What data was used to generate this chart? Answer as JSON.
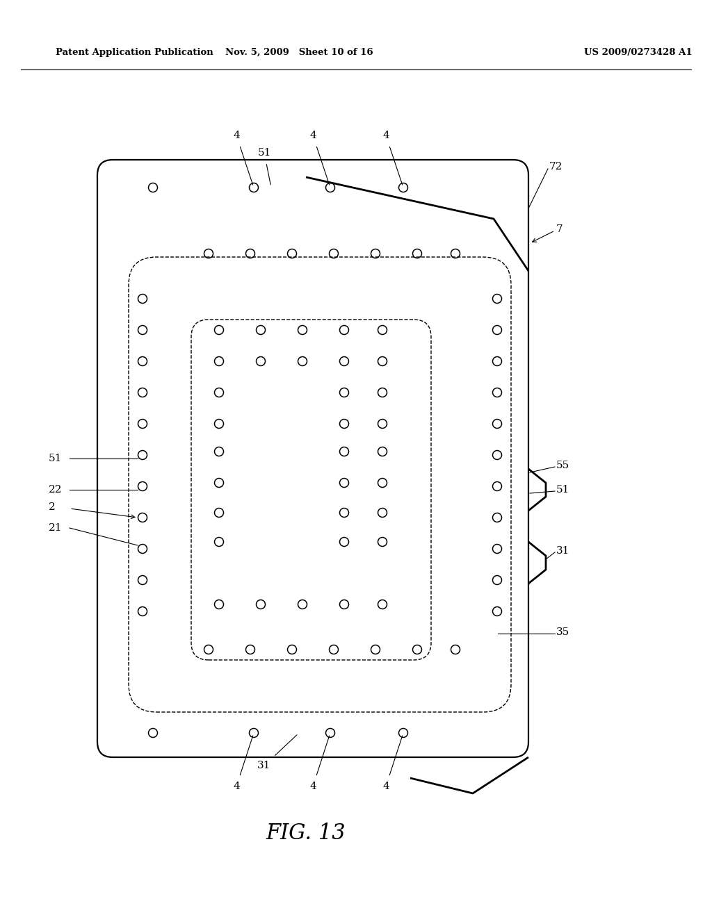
{
  "bg_color": "#ffffff",
  "header_left": "Patent Application Publication",
  "header_mid": "Nov. 5, 2009   Sheet 10 of 16",
  "header_right": "US 2009/0273428 A1",
  "fig_label": "FIG. 13",
  "circle_r": 0.008,
  "lw_board": 1.6,
  "lw_dashed": 1.0,
  "lw_trace": 2.0
}
